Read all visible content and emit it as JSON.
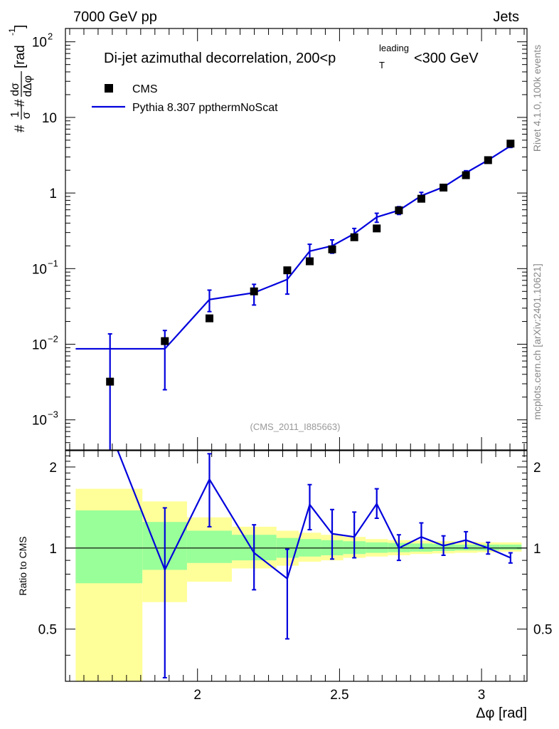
{
  "header": {
    "energy_label": "7000 GeV pp",
    "category_label": "Jets",
    "plot_title": "Di-jet azimuthal decorrelation, 200<p",
    "title_sup": "leading",
    "title_sub": "T",
    "title_end": "<300 GeV",
    "analysis_id": "(CMS_2011_I885663)",
    "side_label_top": "Rivet 4.1.0,  100k events",
    "side_label_bottom": "mcplots.cern.ch [arXiv:2401.10621]"
  },
  "colors": {
    "data": "#000000",
    "mc": "#0000dd",
    "band_inner": "#99ff99",
    "band_outer": "#ffff99"
  },
  "chart_data": [
    {
      "type": "scatter",
      "panel": "main",
      "title": "Di-jet azimuthal decorrelation, 200<p_T^leading<300 GeV",
      "xlabel": "Δφ [rad]",
      "ylabel": "#frac{1}{σ} #frac{dσ}{dΔφ} [rad⁻¹]",
      "ylabel_parts": {
        "hash1": "#",
        "one": "1",
        "sigma": "σ",
        "hash2": "#",
        "dsig": "dσ",
        "ddphi": "dΔφ",
        "unit": "[rad",
        "unit_sup": "-1",
        "unit_end": "]"
      },
      "yscale": "log",
      "xlim": [
        1.535,
        3.16
      ],
      "ylim": [
        0.0004,
        150
      ],
      "y_ticks": [
        {
          "value": 0.001,
          "base": "10",
          "exp": "−3"
        },
        {
          "value": 0.01,
          "base": "10",
          "exp": "−2"
        },
        {
          "value": 0.1,
          "base": "10",
          "exp": "−1"
        },
        {
          "value": 1,
          "base": "1",
          "exp": ""
        },
        {
          "value": 10,
          "base": "10",
          "exp": ""
        },
        {
          "value": 100,
          "base": "10",
          "exp": "2"
        }
      ],
      "legend": [
        {
          "name": "CMS",
          "marker": "square"
        },
        {
          "name": "Pythia 8.307 ppthermNoScat",
          "marker": "line"
        }
      ],
      "series": [
        {
          "name": "CMS",
          "x": [
            1.692,
            1.885,
            2.042,
            2.199,
            2.316,
            2.395,
            2.474,
            2.552,
            2.631,
            2.709,
            2.788,
            2.866,
            2.945,
            3.023,
            3.102
          ],
          "y": [
            0.0032,
            0.011,
            0.022,
            0.05,
            0.095,
            0.125,
            0.18,
            0.26,
            0.34,
            0.59,
            0.84,
            1.18,
            1.72,
            2.72,
            4.5
          ]
        },
        {
          "name": "Pythia 8.307 ppthermNoScat",
          "x_low": [
            1.571,
            1.806,
            1.963,
            2.121,
            2.278,
            2.356,
            2.435,
            2.513,
            2.592,
            2.67,
            2.749,
            2.827,
            2.906,
            2.985,
            3.063
          ],
          "x_high": [
            1.806,
            1.963,
            2.121,
            2.278,
            2.356,
            2.435,
            2.513,
            2.592,
            2.67,
            2.749,
            2.827,
            2.906,
            2.985,
            3.063,
            3.12
          ],
          "x": [
            1.692,
            1.885,
            2.042,
            2.199,
            2.316,
            2.395,
            2.474,
            2.552,
            2.631,
            2.709,
            2.788,
            2.866,
            2.945,
            3.023,
            3.102
          ],
          "y": [
            0.0087,
            0.0087,
            0.039,
            0.048,
            0.072,
            0.17,
            0.2,
            0.29,
            0.48,
            0.59,
            0.92,
            1.2,
            1.85,
            2.72,
            4.2
          ],
          "err_low": [
            0.0087,
            0.0062,
            0.012,
            0.015,
            0.026,
            0.032,
            0.04,
            0.05,
            0.07,
            0.07,
            0.1,
            0.1,
            0.12,
            0.15,
            0.2
          ],
          "err_high": [
            0.005,
            0.0065,
            0.013,
            0.014,
            0.022,
            0.04,
            0.04,
            0.05,
            0.06,
            0.07,
            0.1,
            0.1,
            0.12,
            0.15,
            0.2
          ]
        }
      ]
    },
    {
      "type": "line",
      "panel": "ratio",
      "ylabel": "Ratio to CMS",
      "xlabel": "Δφ [rad]",
      "ylim": [
        0.32,
        2.3
      ],
      "y_ticks": [
        0.5,
        1,
        2
      ],
      "x_ticks": [
        2,
        2.5,
        3
      ],
      "x_tick_labels": [
        "2",
        "2.5",
        "3"
      ],
      "reference": 1,
      "bands": {
        "edges": [
          1.571,
          1.806,
          1.963,
          2.121,
          2.278,
          2.356,
          2.435,
          2.513,
          2.592,
          2.67,
          2.749,
          2.827,
          2.906,
          2.985,
          3.063,
          3.141
        ],
        "inner_low": [
          0.74,
          0.83,
          0.88,
          0.9,
          0.92,
          0.93,
          0.94,
          0.95,
          0.96,
          0.965,
          0.97,
          0.975,
          0.98,
          0.98,
          0.985
        ],
        "inner_high": [
          1.38,
          1.25,
          1.16,
          1.12,
          1.09,
          1.08,
          1.07,
          1.06,
          1.05,
          1.045,
          1.04,
          1.035,
          1.03,
          1.03,
          1.03
        ],
        "outer_low": [
          0.32,
          0.63,
          0.75,
          0.84,
          0.86,
          0.89,
          0.9,
          0.92,
          0.93,
          0.94,
          0.95,
          0.955,
          0.96,
          0.965,
          0.97
        ],
        "outer_high": [
          1.66,
          1.49,
          1.3,
          1.2,
          1.16,
          1.14,
          1.12,
          1.1,
          1.08,
          1.07,
          1.065,
          1.06,
          1.055,
          1.05,
          1.05
        ]
      },
      "series": [
        {
          "name": "Pythia 8.307 ppthermNoScat / CMS",
          "x": [
            1.692,
            1.885,
            2.042,
            2.199,
            2.316,
            2.395,
            2.474,
            2.552,
            2.631,
            2.709,
            2.788,
            2.866,
            2.945,
            3.023,
            3.102
          ],
          "y": [
            2.72,
            0.83,
            1.8,
            0.96,
            0.77,
            1.45,
            1.13,
            1.1,
            1.46,
            1.0,
            1.1,
            1.02,
            1.07,
            1.0,
            0.92
          ],
          "err_low": [
            0.0,
            0.5,
            0.6,
            0.26,
            0.31,
            0.28,
            0.22,
            0.18,
            0.17,
            0.1,
            0.1,
            0.08,
            0.07,
            0.05,
            0.04
          ],
          "err_high": [
            0.0,
            0.58,
            0.44,
            0.26,
            0.22,
            0.27,
            0.26,
            0.26,
            0.2,
            0.12,
            0.14,
            0.09,
            0.08,
            0.05,
            0.04
          ]
        }
      ]
    }
  ]
}
